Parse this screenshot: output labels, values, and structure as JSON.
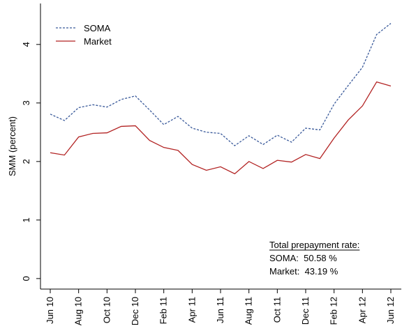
{
  "chart_data": {
    "type": "line",
    "y_label": "SMM (percent)",
    "categories": [
      "Jun 10",
      null,
      "Aug 10",
      null,
      "Oct 10",
      null,
      "Dec 10",
      null,
      "Feb 11",
      null,
      "Apr 11",
      null,
      "Jun 11",
      null,
      "Aug 11",
      null,
      "Oct 11",
      null,
      "Dec 11",
      null,
      "Feb 12",
      null,
      "Apr 12",
      null,
      "Jun 12"
    ],
    "series": [
      {
        "name": "SOMA",
        "color": "#3a5a9a",
        "dash": "dotted",
        "values": [
          2.81,
          2.7,
          2.92,
          2.97,
          2.93,
          3.06,
          3.12,
          2.88,
          2.63,
          2.77,
          2.57,
          2.5,
          2.48,
          2.27,
          2.44,
          2.29,
          2.45,
          2.33,
          2.57,
          2.54,
          2.98,
          3.3,
          3.61,
          4.17,
          4.36
        ]
      },
      {
        "name": "Market",
        "color": "#b22222",
        "dash": "solid",
        "values": [
          2.15,
          2.11,
          2.42,
          2.48,
          2.49,
          2.6,
          2.61,
          2.36,
          2.24,
          2.19,
          1.95,
          1.85,
          1.91,
          1.79,
          2.0,
          1.88,
          2.02,
          1.99,
          2.12,
          2.05,
          2.4,
          2.71,
          2.95,
          3.36,
          3.29
        ]
      }
    ],
    "ylim": [
      -0.18,
      4.7
    ],
    "yticks": [
      0,
      1,
      2,
      3,
      4
    ],
    "legend": "upper-left",
    "annotations": [
      "Total prepayment rate:",
      "SOMA:  50.58 %",
      "Market:  43.19 %"
    ]
  }
}
